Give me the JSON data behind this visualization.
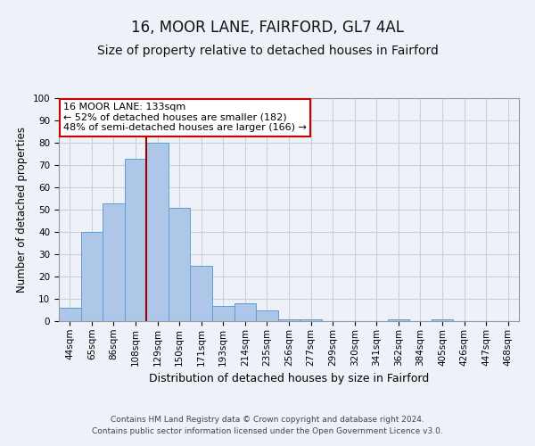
{
  "title": "16, MOOR LANE, FAIRFORD, GL7 4AL",
  "subtitle": "Size of property relative to detached houses in Fairford",
  "xlabel": "Distribution of detached houses by size in Fairford",
  "ylabel": "Number of detached properties",
  "bin_labels": [
    "44sqm",
    "65sqm",
    "86sqm",
    "108sqm",
    "129sqm",
    "150sqm",
    "171sqm",
    "193sqm",
    "214sqm",
    "235sqm",
    "256sqm",
    "277sqm",
    "299sqm",
    "320sqm",
    "341sqm",
    "362sqm",
    "384sqm",
    "405sqm",
    "426sqm",
    "447sqm",
    "468sqm"
  ],
  "bar_values": [
    6,
    40,
    53,
    73,
    80,
    51,
    25,
    7,
    8,
    5,
    1,
    1,
    0,
    0,
    0,
    1,
    0,
    1,
    0,
    0,
    0
  ],
  "bar_color": "#aec6e8",
  "bar_edgecolor": "#5a9fd4",
  "vline_x_index": 4,
  "vline_color": "#990000",
  "annotation_box_text": "16 MOOR LANE: 133sqm\n← 52% of detached houses are smaller (182)\n48% of semi-detached houses are larger (166) →",
  "annotation_box_edgecolor": "#cc0000",
  "annotation_box_facecolor": "#ffffff",
  "ylim": [
    0,
    100
  ],
  "yticks": [
    0,
    10,
    20,
    30,
    40,
    50,
    60,
    70,
    80,
    90,
    100
  ],
  "grid_color": "#c8d0dc",
  "background_color": "#eef2f8",
  "footer_line1": "Contains HM Land Registry data © Crown copyright and database right 2024.",
  "footer_line2": "Contains public sector information licensed under the Open Government Licence v3.0.",
  "title_fontsize": 12,
  "subtitle_fontsize": 10,
  "xlabel_fontsize": 9,
  "ylabel_fontsize": 8.5,
  "tick_fontsize": 7.5,
  "footer_fontsize": 6.5
}
